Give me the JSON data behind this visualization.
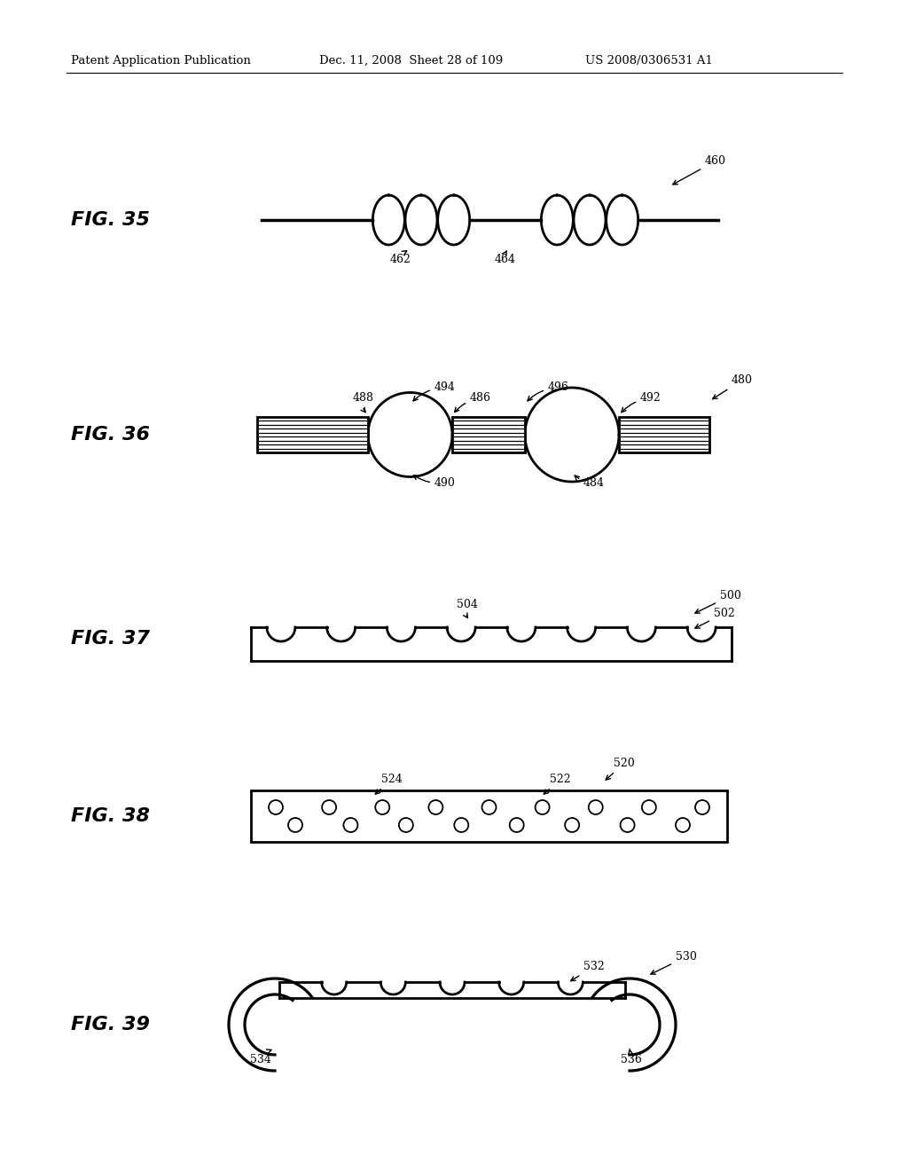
{
  "header_left": "Patent Application Publication",
  "header_mid": "Dec. 11, 2008  Sheet 28 of 109",
  "header_right": "US 2008/0306531 A1",
  "bg_color": "#ffffff",
  "line_color": "#000000"
}
